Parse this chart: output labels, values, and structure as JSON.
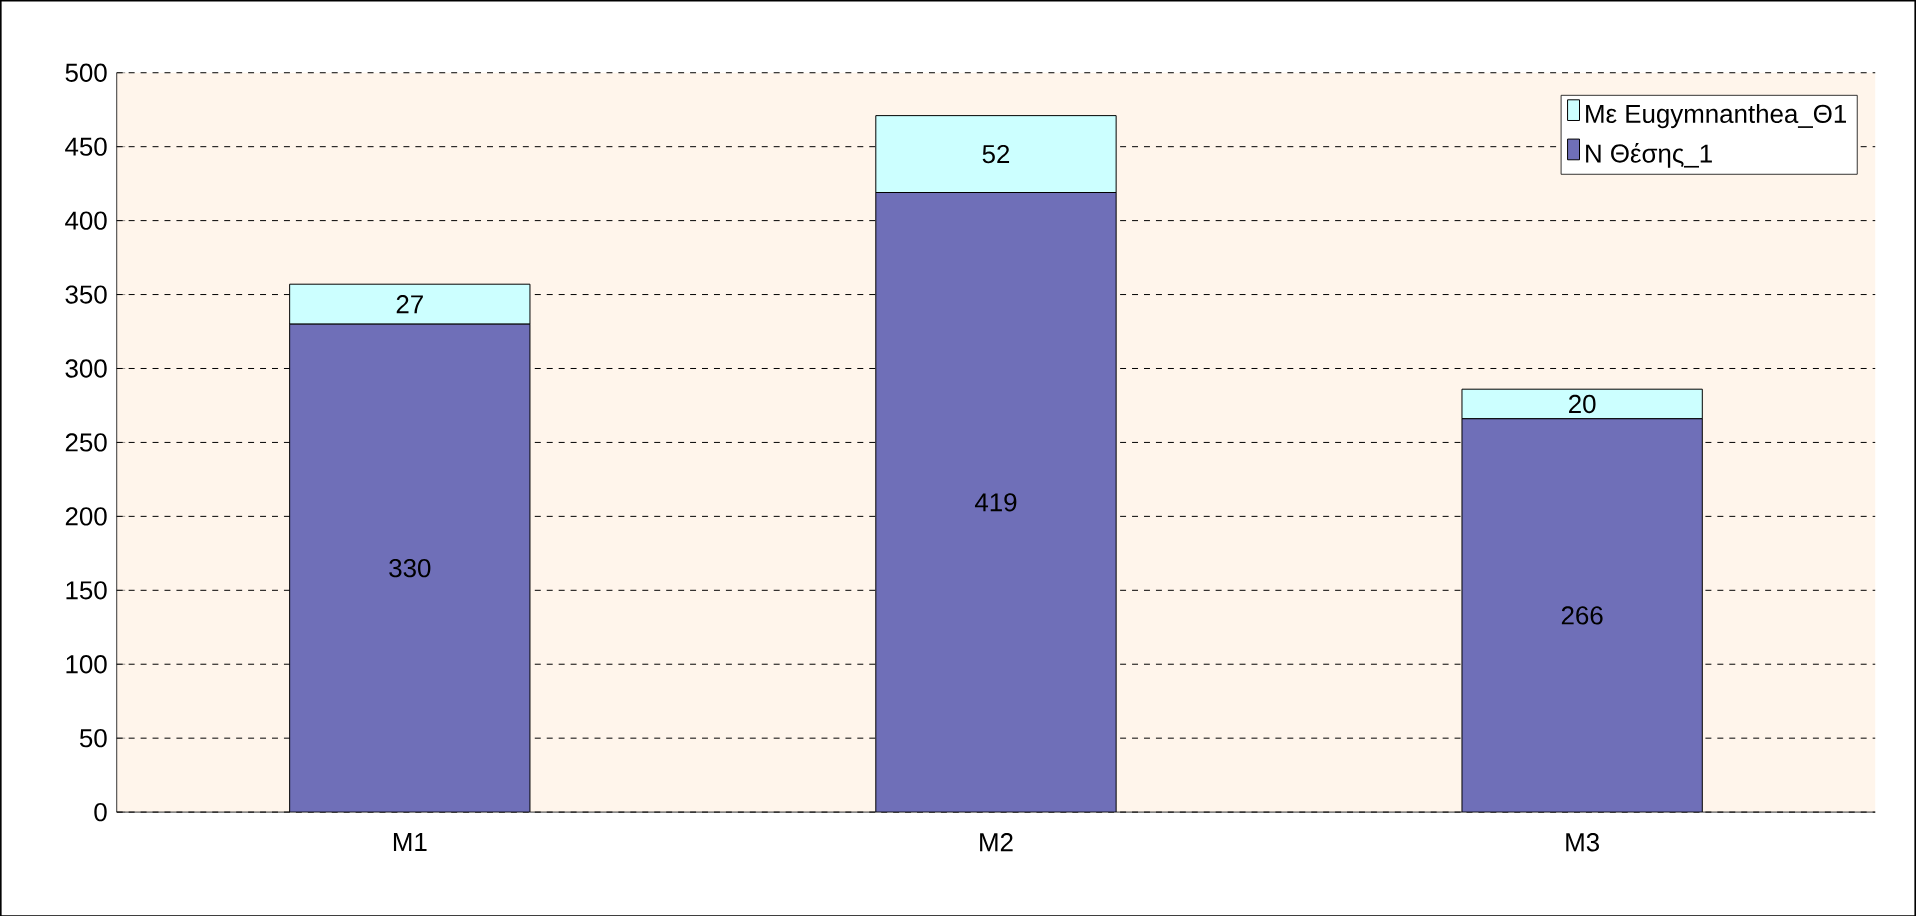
{
  "chart_data": {
    "type": "bar",
    "stacked": true,
    "categories": [
      "M1",
      "M2",
      "M3"
    ],
    "series": [
      {
        "name": "N Θέσης_1",
        "color": "#6f6fb8",
        "values": [
          330,
          419,
          266
        ]
      },
      {
        "name": "Με Eugymnanthea_Θ1",
        "color": "#ccffff",
        "values": [
          27,
          52,
          20
        ]
      }
    ],
    "ylim": [
      0,
      500
    ],
    "yticks": [
      0,
      50,
      100,
      150,
      200,
      250,
      300,
      350,
      400,
      450,
      500
    ],
    "grid": "y",
    "legend": "top right",
    "data_labels": true
  }
}
